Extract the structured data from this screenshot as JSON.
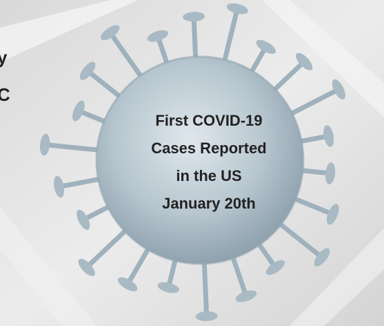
{
  "caption": {
    "lines": [
      "First COVID-19",
      "Cases Reported",
      "in the US",
      "January 20th"
    ]
  },
  "edge_fragments": [
    "y",
    "C"
  ]
}
